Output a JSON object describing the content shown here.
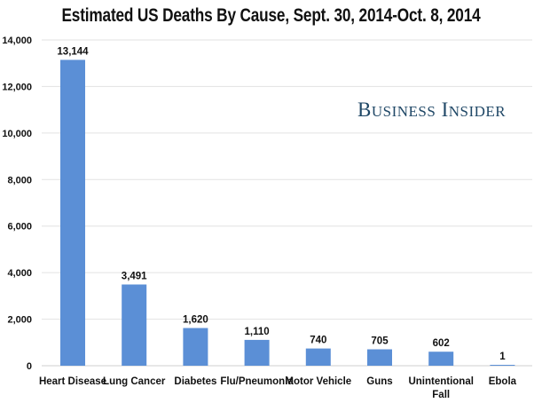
{
  "chart_data": {
    "type": "bar",
    "title": "Estimated US Deaths By Cause, Sept. 30, 2014-Oct. 8, 2014",
    "categories": [
      "Heart Disease",
      "Lung Cancer",
      "Diabetes",
      "Flu/Pneumonia",
      "Motor Vehicle",
      "Guns",
      "Unintentional Fall",
      "Ebola"
    ],
    "values": [
      13144,
      3491,
      1620,
      1110,
      740,
      705,
      602,
      1
    ],
    "data_labels": [
      "13,144",
      "3,491",
      "1,620",
      "1,110",
      "740",
      "705",
      "602",
      "1"
    ],
    "xlabel": "",
    "ylabel": "",
    "ylim": [
      0,
      14000
    ],
    "yticks": [
      0,
      2000,
      4000,
      6000,
      8000,
      10000,
      12000,
      14000
    ],
    "ytick_labels": [
      "0",
      "2,000",
      "4,000",
      "6,000",
      "8,000",
      "10,000",
      "12,000",
      "14,000"
    ],
    "grid": true,
    "bar_color": "#5b8fd6",
    "grid_color": "#e2e2e2"
  },
  "watermark": {
    "text": "Business Insider",
    "color": "#1f4766"
  }
}
